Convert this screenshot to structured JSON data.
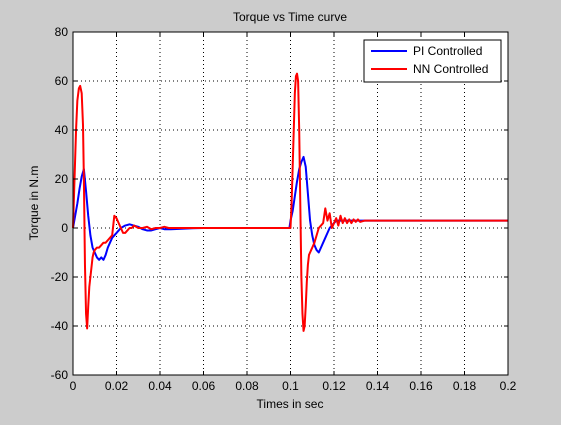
{
  "chart_data": {
    "type": "line",
    "title": "Torque vs Time curve",
    "xlabel": "Times in sec",
    "ylabel": "Torque in N.m",
    "xlim": [
      0,
      0.2
    ],
    "ylim": [
      -60,
      80
    ],
    "xticks": [
      0,
      0.02,
      0.04,
      0.06,
      0.08,
      0.1,
      0.12,
      0.14,
      0.16,
      0.18,
      0.2
    ],
    "xtick_labels": [
      "0",
      "0.02",
      "0.04",
      "0.06",
      "0.08",
      "0.1",
      "0.12",
      "0.14",
      "0.16",
      "0.18",
      "0.2"
    ],
    "yticks": [
      -60,
      -40,
      -20,
      0,
      20,
      40,
      60,
      80
    ],
    "ytick_labels": [
      "-60",
      "-40",
      "-20",
      "0",
      "20",
      "40",
      "60",
      "80"
    ],
    "grid": true,
    "legend_position": "top-right",
    "series": [
      {
        "name": "PI Controlled",
        "color": "#0000ff",
        "x": [
          0,
          0.001,
          0.002,
          0.003,
          0.004,
          0.005,
          0.006,
          0.007,
          0.008,
          0.009,
          0.01,
          0.011,
          0.012,
          0.013,
          0.014,
          0.015,
          0.016,
          0.018,
          0.02,
          0.022,
          0.024,
          0.026,
          0.028,
          0.03,
          0.032,
          0.034,
          0.036,
          0.038,
          0.04,
          0.042,
          0.045,
          0.05,
          0.055,
          0.06,
          0.07,
          0.08,
          0.09,
          0.0995,
          0.1,
          0.101,
          0.102,
          0.103,
          0.104,
          0.105,
          0.106,
          0.107,
          0.108,
          0.109,
          0.11,
          0.111,
          0.112,
          0.113,
          0.114,
          0.115,
          0.116,
          0.117,
          0.118,
          0.119,
          0.12,
          0.121,
          0.122,
          0.124,
          0.126,
          0.128,
          0.13,
          0.135,
          0.14,
          0.15,
          0.16,
          0.18,
          0.2
        ],
        "y": [
          0,
          5,
          10,
          16,
          21,
          24,
          15,
          5,
          -3,
          -8,
          -10,
          -12,
          -13,
          -12,
          -13,
          -11,
          -8,
          -4,
          -2,
          0,
          1,
          1.5,
          1,
          0.5,
          -0.5,
          -1,
          -1,
          -0.5,
          0,
          -0.5,
          -0.5,
          -0.3,
          -0.1,
          0,
          0,
          0,
          0,
          0,
          3,
          7,
          13,
          19,
          24,
          27,
          29,
          25,
          14,
          3,
          -3,
          -7,
          -9,
          -10,
          -8,
          -6,
          -4,
          -2,
          0,
          1,
          2,
          3,
          3,
          3,
          3,
          3,
          3,
          3,
          3,
          3,
          3,
          3,
          3
        ]
      },
      {
        "name": "NN Controlled",
        "color": "#ff0000",
        "x": [
          0,
          0.0007,
          0.0014,
          0.002,
          0.0027,
          0.0033,
          0.004,
          0.0046,
          0.005,
          0.0055,
          0.006,
          0.0065,
          0.007,
          0.0075,
          0.008,
          0.0085,
          0.009,
          0.0095,
          0.01,
          0.011,
          0.012,
          0.013,
          0.014,
          0.015,
          0.016,
          0.017,
          0.018,
          0.019,
          0.02,
          0.021,
          0.022,
          0.023,
          0.024,
          0.025,
          0.026,
          0.027,
          0.028,
          0.029,
          0.03,
          0.032,
          0.034,
          0.036,
          0.038,
          0.04,
          0.042,
          0.044,
          0.046,
          0.048,
          0.05,
          0.055,
          0.06,
          0.07,
          0.08,
          0.09,
          0.1,
          0.1005,
          0.101,
          0.1015,
          0.102,
          0.1025,
          0.103,
          0.1035,
          0.104,
          0.1045,
          0.105,
          0.1055,
          0.106,
          0.1065,
          0.107,
          0.1075,
          0.108,
          0.1085,
          0.109,
          0.1095,
          0.11,
          0.111,
          0.112,
          0.113,
          0.114,
          0.115,
          0.116,
          0.117,
          0.118,
          0.119,
          0.12,
          0.121,
          0.122,
          0.123,
          0.124,
          0.125,
          0.126,
          0.127,
          0.128,
          0.129,
          0.13,
          0.131,
          0.132,
          0.134,
          0.136,
          0.138,
          0.14,
          0.145,
          0.15,
          0.16,
          0.17,
          0.18,
          0.19,
          0.2
        ],
        "y": [
          0,
          20,
          40,
          52,
          57,
          58,
          55,
          42,
          20,
          -15,
          -35,
          -41,
          -32,
          -24,
          -20,
          -16,
          -12,
          -10,
          -9,
          -8,
          -8,
          -7,
          -6,
          -6,
          -5,
          -4,
          -3,
          5,
          4,
          2,
          0,
          -2,
          -2,
          -1,
          0,
          0,
          1,
          0.5,
          0,
          0,
          0.5,
          -0.5,
          0,
          0,
          0.5,
          0,
          0,
          0,
          0,
          0,
          0,
          0,
          0,
          0,
          0,
          10,
          25,
          40,
          55,
          62,
          63,
          60,
          40,
          10,
          -20,
          -35,
          -42,
          -40,
          -32,
          -22,
          -15,
          -11,
          -10,
          -9,
          -8,
          -6,
          -3,
          0,
          1,
          2,
          8,
          3,
          6,
          0,
          2,
          4,
          1,
          5,
          2,
          4,
          2,
          3.5,
          2,
          3.5,
          2.5,
          3.5,
          2.5,
          3,
          3,
          3,
          3,
          3,
          3,
          3,
          3,
          3,
          3,
          3
        ]
      }
    ]
  }
}
